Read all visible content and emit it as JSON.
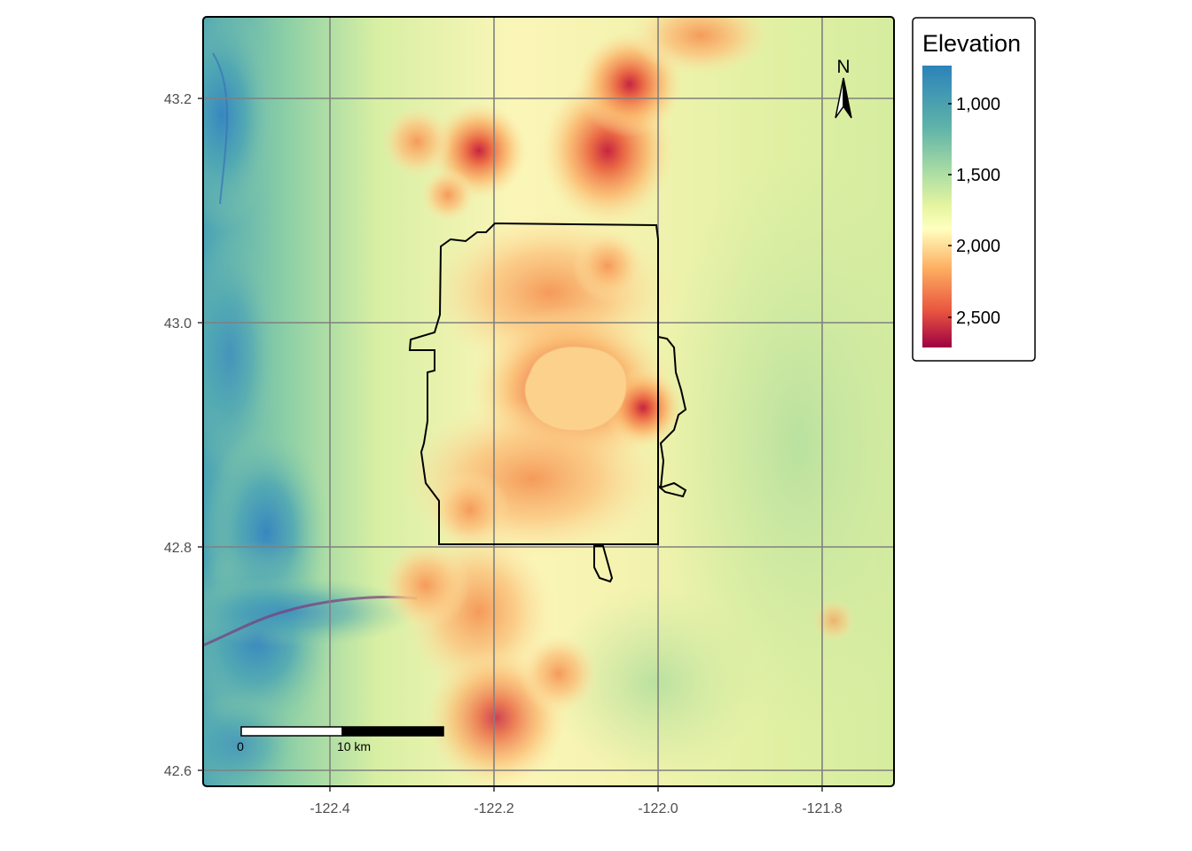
{
  "map": {
    "x_axis": {
      "ticks": [
        "-122.4",
        "-122.2",
        "-122.0",
        "-121.8"
      ]
    },
    "y_axis": {
      "ticks": [
        "43.2",
        "43.0",
        "42.8",
        "42.6"
      ]
    },
    "grid": true
  },
  "legend": {
    "title": "Elevation",
    "labels": [
      "1,000",
      "1,500",
      "2,000",
      "2,500"
    ],
    "colors": [
      "#2b83ba",
      "#abdda4",
      "#ffffbf",
      "#fdae61",
      "#d7191c",
      "#9e0142"
    ]
  },
  "scale_bar": {
    "labels": [
      "0",
      "10 km"
    ]
  },
  "north_arrow": {
    "label": "N"
  },
  "colors": {
    "low": "#2b83ba",
    "mid_low": "#abdda4",
    "mid": "#ffffbf",
    "mid_high": "#fdae61",
    "high": "#d7191c",
    "lake": "#fbd18c",
    "grid": "#808080"
  }
}
